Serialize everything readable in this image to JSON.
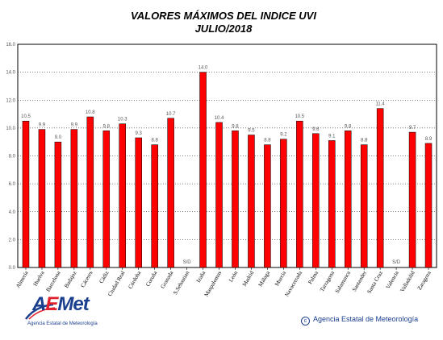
{
  "header": {
    "title_line1": "VALORES MÁXIMOS DEL INDICE UVI",
    "title_line2": "JULIO/2018"
  },
  "branding": {
    "logo_text_a": "A",
    "logo_text_e": "E",
    "logo_text_rest": "Met",
    "logo_subtitle": "Agencia Estatal de Meteorología",
    "credit_symbol": "c",
    "credit_text": "Agencia Estatal de Meteorología"
  },
  "colors": {
    "bar": "#ff0000",
    "bar_edge": "#000000",
    "logo_blue": "#1a3f8f",
    "logo_red": "#e0202a"
  },
  "chart_data": {
    "type": "bar",
    "title": "VALORES MÁXIMOS DEL INDICE UVI JULIO/2018",
    "xlabel": "",
    "ylabel": "",
    "ylim": [
      0,
      16
    ],
    "yticks": [
      "0.0",
      "2.0",
      "4.0",
      "6.0",
      "8.0",
      "10.0",
      "12.0",
      "14.0",
      "16.0"
    ],
    "grid": "horizontal dotted",
    "categories": [
      "Almería",
      "Huelva",
      "Barcelona",
      "Badajoz",
      "Cáceres",
      "Cádiz",
      "Ciudad Real",
      "Córdoba",
      "Coruña",
      "Granada",
      "S.Sebastian",
      "Izaña",
      "Maspalomas",
      "León",
      "Madrid",
      "Málaga",
      "Murcia",
      "Navacerrada",
      "Palma",
      "Tarragona",
      "Salamanca",
      "Santander",
      "Santa Cruz",
      "Valencia",
      "Valladolid",
      "Zaragoza"
    ],
    "values": [
      10.5,
      9.9,
      9.0,
      9.9,
      10.8,
      9.8,
      10.3,
      9.3,
      8.8,
      10.7,
      null,
      14.0,
      10.4,
      9.8,
      9.5,
      8.8,
      9.2,
      10.5,
      9.6,
      9.1,
      9.8,
      8.8,
      11.4,
      null,
      9.7,
      8.9
    ],
    "value_labels": [
      "10.5",
      "9.9",
      "9.0",
      "9.9",
      "10.8",
      "9.8",
      "10.3",
      "9.3",
      "8.8",
      "10.7",
      "S/D",
      "14.0",
      "10.4",
      "9.8",
      "9.5",
      "8.8",
      "9.2",
      "10.5",
      "9.6",
      "9.1",
      "9.8",
      "8.8",
      "11.4",
      "S/D",
      "9.7",
      "8.9"
    ]
  }
}
